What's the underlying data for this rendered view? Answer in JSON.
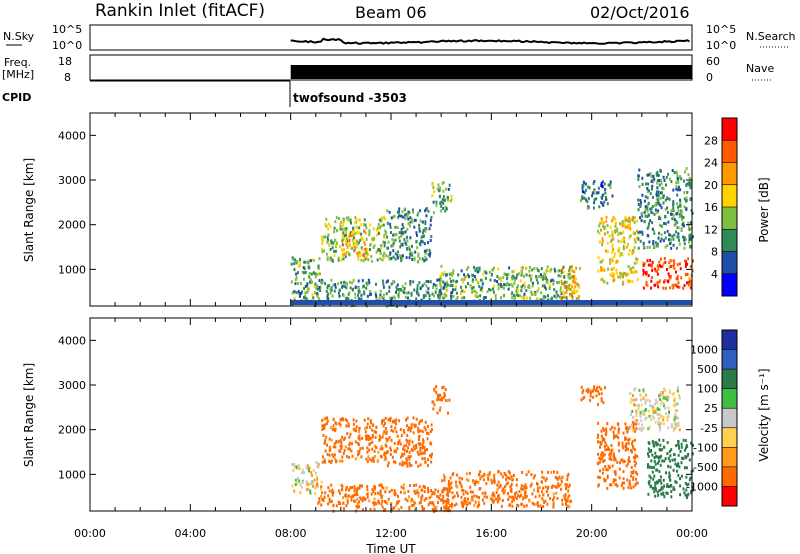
{
  "header": {
    "station": "Rankin Inlet (fitACF)",
    "beam": "Beam 06",
    "date": "02/Oct/2016"
  },
  "noise_panel": {
    "left_label": "N.Sky",
    "right_label": "N.Search",
    "left_ticks": [
      "10^5",
      "10^0"
    ],
    "right_ticks": [
      "10^5",
      "10^0"
    ]
  },
  "freq_panel": {
    "left_label_1": "Freq.",
    "left_label_2": "[MHz]",
    "right_label": "Nave",
    "left_ticks": [
      "18",
      "8"
    ],
    "right_ticks": [
      "60",
      "0"
    ]
  },
  "cpid": {
    "label": "CPID",
    "text": "twofsound -3503"
  },
  "colors": {
    "power_scale": [
      "#0000ff",
      "#1f4fa8",
      "#2e8b57",
      "#7fbf3f",
      "#ffd200",
      "#ff9900",
      "#ff5a00",
      "#ff0000"
    ],
    "velocity_scale": [
      "#ff0000",
      "#ff6a00",
      "#ff9a1a",
      "#ffd24d",
      "#c8c8c8",
      "#3fbf3f",
      "#2a7a4a",
      "#2f5fbf",
      "#1f2fa0"
    ]
  },
  "chart_data": [
    {
      "type": "heatmap",
      "title": "Power",
      "xlabel": "",
      "ylabel": "Slant Range [km]",
      "y_ticks": [
        "4000",
        "3000",
        "2000",
        "1000"
      ],
      "ylim": [
        180,
        4500
      ],
      "xlim_hours": [
        0,
        24
      ],
      "colorbar": {
        "label": "Power [dB]",
        "tick_labels": [
          "28",
          "24",
          "20",
          "16",
          "12",
          "8",
          "4"
        ],
        "range": [
          0,
          32
        ]
      },
      "regions": [
        {
          "t0": 8.0,
          "t1": 9.2,
          "r0": 200,
          "r1": 1300,
          "value": 12
        },
        {
          "t0": 9.2,
          "t1": 11.8,
          "r0": 1200,
          "r1": 2200,
          "value": 14
        },
        {
          "t0": 10.0,
          "t1": 11.0,
          "r0": 1300,
          "r1": 1900,
          "value": 20
        },
        {
          "t0": 11.8,
          "t1": 13.6,
          "r0": 1200,
          "r1": 2400,
          "value": 10
        },
        {
          "t0": 13.6,
          "t1": 14.4,
          "r0": 2300,
          "r1": 3000,
          "value": 12
        },
        {
          "t0": 9.0,
          "t1": 14.2,
          "r0": 200,
          "r1": 800,
          "value": 10
        },
        {
          "t0": 13.8,
          "t1": 19.2,
          "r0": 300,
          "r1": 1100,
          "value": 12
        },
        {
          "t0": 18.6,
          "t1": 19.5,
          "r0": 300,
          "r1": 1100,
          "value": 20
        },
        {
          "t0": 19.5,
          "t1": 20.8,
          "r0": 2400,
          "r1": 3000,
          "value": 8
        },
        {
          "t0": 20.2,
          "t1": 21.8,
          "r0": 700,
          "r1": 2200,
          "value": 18
        },
        {
          "t0": 21.8,
          "t1": 24.0,
          "r0": 1500,
          "r1": 3300,
          "value": 10
        },
        {
          "t0": 22.0,
          "t1": 24.0,
          "r0": 600,
          "r1": 1300,
          "value": 28
        }
      ]
    },
    {
      "type": "heatmap",
      "title": "Velocity",
      "xlabel": "Time UT",
      "ylabel": "Slant Range [km]",
      "x_ticks": [
        "00:00",
        "04:00",
        "08:00",
        "12:00",
        "16:00",
        "20:00",
        "00:00"
      ],
      "y_ticks": [
        "4000",
        "3000",
        "2000",
        "1000"
      ],
      "ylim": [
        180,
        4500
      ],
      "xlim_hours": [
        0,
        24
      ],
      "colorbar": {
        "label": "Velocity [m s⁻¹]",
        "tick_labels": [
          "1000",
          "500",
          "100",
          "25",
          "-25",
          "-100",
          "-500",
          "-1000"
        ]
      },
      "regions": [
        {
          "t0": 8.0,
          "t1": 9.2,
          "r0": 600,
          "r1": 1300,
          "value": -10
        },
        {
          "t0": 9.2,
          "t1": 11.8,
          "r0": 1300,
          "r1": 2300,
          "value": -150
        },
        {
          "t0": 11.8,
          "t1": 13.6,
          "r0": 1200,
          "r1": 2300,
          "value": -200
        },
        {
          "t0": 13.6,
          "t1": 14.3,
          "r0": 2400,
          "r1": 3000,
          "value": -150
        },
        {
          "t0": 9.0,
          "t1": 14.5,
          "r0": 200,
          "r1": 800,
          "value": -150
        },
        {
          "t0": 14.0,
          "t1": 19.2,
          "r0": 300,
          "r1": 1100,
          "value": -150
        },
        {
          "t0": 19.5,
          "t1": 20.5,
          "r0": 2600,
          "r1": 3000,
          "value": -200
        },
        {
          "t0": 20.2,
          "t1": 21.8,
          "r0": 700,
          "r1": 2200,
          "value": -200
        },
        {
          "t0": 21.5,
          "t1": 23.5,
          "r0": 2000,
          "r1": 3000,
          "value": -10
        },
        {
          "t0": 22.2,
          "t1": 24.0,
          "r0": 500,
          "r1": 1800,
          "value": 200
        }
      ]
    }
  ]
}
